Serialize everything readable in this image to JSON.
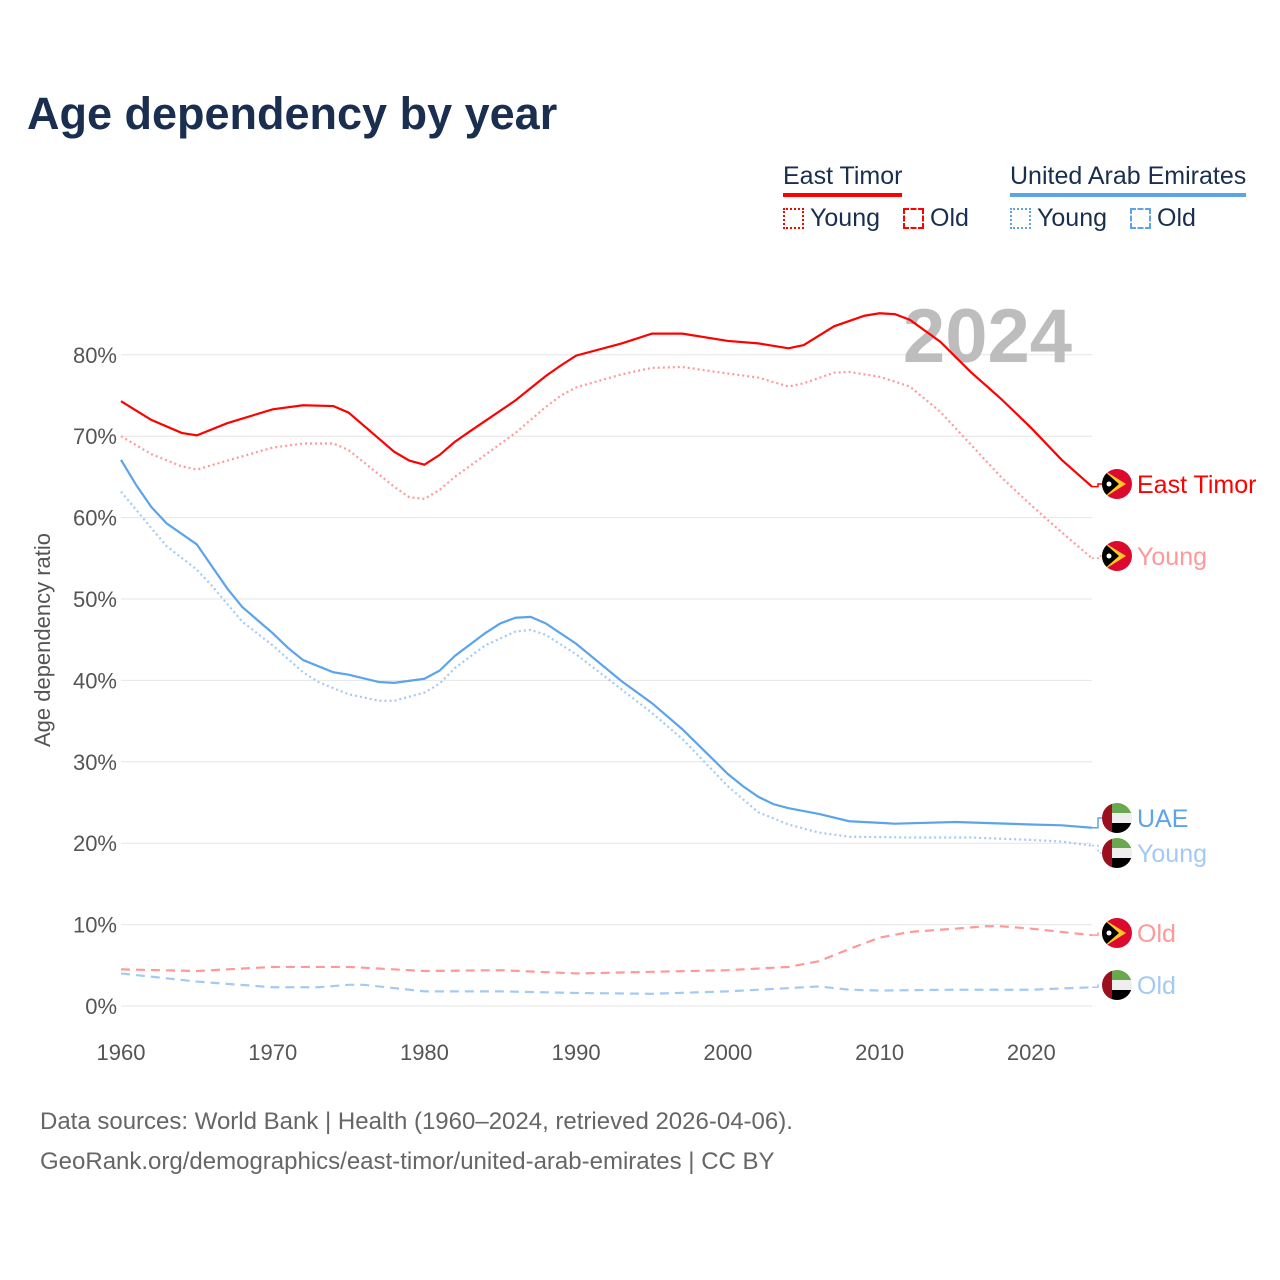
{
  "title": "Age dependency by year",
  "legend": {
    "groups": [
      {
        "name": "East Timor",
        "color": "#ff0000",
        "items": [
          "Young",
          "Old"
        ]
      },
      {
        "name": "United Arab Emirates",
        "color": "#5ba4ec",
        "items": [
          "Young",
          "Old"
        ]
      }
    ]
  },
  "year_watermark": "2024",
  "footer": {
    "line1": "Data sources: World Bank | Health (1960–2024, retrieved 2026-04-06).",
    "line2": "GeoRank.org/demographics/east-timor/united-arab-emirates | CC BY"
  },
  "chart_data": {
    "type": "line",
    "title": "Age dependency by year",
    "xlabel": "",
    "ylabel": "Age dependency ratio",
    "xlim": [
      1960,
      2024
    ],
    "ylim": [
      0,
      85
    ],
    "x_ticks": [
      "1960",
      "1970",
      "1980",
      "1990",
      "2000",
      "2010",
      "2020"
    ],
    "y_ticks": [
      "0%",
      "10%",
      "20%",
      "30%",
      "40%",
      "50%",
      "60%",
      "70%",
      "80%"
    ],
    "grid": true,
    "series": [
      {
        "name": "East Timor",
        "end_label": "East Timor",
        "color": "#ff0000",
        "style": "solid",
        "flag": "east-timor",
        "x": [
          1960,
          1962,
          1964,
          1965,
          1967,
          1970,
          1972,
          1974,
          1975,
          1978,
          1979,
          1980,
          1981,
          1982,
          1983,
          1986,
          1988,
          1989,
          1990,
          1993,
          1995,
          1997,
          2000,
          2002,
          2004,
          2005,
          2007,
          2009,
          2010,
          2011,
          2012,
          2014,
          2016,
          2018,
          2020,
          2022,
          2024
        ],
        "y": [
          74.3,
          72,
          70.4,
          70.1,
          71.6,
          73.3,
          73.8,
          73.7,
          72.9,
          68.1,
          67,
          66.5,
          67.7,
          69.3,
          70.6,
          74.4,
          77.4,
          78.7,
          79.9,
          81.4,
          82.6,
          82.6,
          81.7,
          81.4,
          80.8,
          81.2,
          83.5,
          84.8,
          85.1,
          85,
          84.3,
          81.6,
          77.9,
          74.6,
          71,
          67.1,
          63.8
        ]
      },
      {
        "name": "East Timor Young",
        "end_label": "Young",
        "color": "#ff9999",
        "style": "dotted",
        "flag": "east-timor",
        "x": [
          1960,
          1962,
          1964,
          1965,
          1967,
          1970,
          1972,
          1974,
          1975,
          1978,
          1979,
          1980,
          1981,
          1982,
          1986,
          1988,
          1989,
          1990,
          1993,
          1995,
          1997,
          2000,
          2002,
          2004,
          2005,
          2007,
          2008,
          2010,
          2012,
          2014,
          2016,
          2018,
          2020,
          2022,
          2024
        ],
        "y": [
          70,
          67.8,
          66.3,
          65.9,
          67,
          68.6,
          69.1,
          69.1,
          68.3,
          63.8,
          62.5,
          62.3,
          63.4,
          65,
          70.4,
          73.6,
          75,
          76,
          77.6,
          78.4,
          78.5,
          77.7,
          77.2,
          76.1,
          76.5,
          77.8,
          77.9,
          77.3,
          76.1,
          73,
          69,
          65,
          61.5,
          58.2,
          55
        ]
      },
      {
        "name": "East Timor Old",
        "end_label": "Old",
        "color": "#ff9999",
        "style": "dashed",
        "flag": "east-timor",
        "x": [
          1960,
          1965,
          1970,
          1975,
          1980,
          1985,
          1990,
          1995,
          2000,
          2004,
          2006,
          2008,
          2010,
          2012,
          2015,
          2017,
          2018,
          2020,
          2024
        ],
        "y": [
          4.5,
          4.3,
          4.8,
          4.8,
          4.3,
          4.4,
          4.0,
          4.2,
          4.4,
          4.8,
          5.5,
          7.0,
          8.4,
          9.1,
          9.5,
          9.8,
          9.8,
          9.5,
          8.7
        ]
      },
      {
        "name": "UAE",
        "end_label": "UAE",
        "color": "#5ba4ec",
        "style": "solid",
        "flag": "uae",
        "x": [
          1960,
          1961,
          1962,
          1963,
          1965,
          1966,
          1967,
          1968,
          1970,
          1971,
          1972,
          1974,
          1975,
          1977,
          1978,
          1980,
          1981,
          1982,
          1984,
          1985,
          1986,
          1987,
          1988,
          1990,
          1993,
          1995,
          1997,
          2000,
          2001,
          2002,
          2003,
          2004,
          2006,
          2008,
          2011,
          2015,
          2020,
          2022,
          2024
        ],
        "y": [
          67.1,
          64,
          61.3,
          59.3,
          56.7,
          54,
          51.3,
          49,
          45.8,
          44,
          42.5,
          41,
          40.7,
          39.8,
          39.7,
          40.2,
          41.2,
          43,
          45.8,
          47,
          47.7,
          47.8,
          47,
          44.5,
          39.9,
          37.2,
          34,
          28.5,
          27,
          25.7,
          24.8,
          24.3,
          23.6,
          22.7,
          22.4,
          22.6,
          22.3,
          22.2,
          21.9
        ]
      },
      {
        "name": "UAE Young",
        "end_label": "Young",
        "color": "#a3caf3",
        "style": "dotted",
        "flag": "uae",
        "x": [
          1960,
          1962,
          1963,
          1965,
          1966,
          1968,
          1970,
          1972,
          1973,
          1975,
          1977,
          1978,
          1980,
          1981,
          1982,
          1984,
          1986,
          1987,
          1988,
          1990,
          1995,
          1997,
          2000,
          2002,
          2004,
          2006,
          2008,
          2012,
          2016,
          2020,
          2022,
          2024
        ],
        "y": [
          63.2,
          58.7,
          56.5,
          53.6,
          51.6,
          47.2,
          44.3,
          41,
          39.8,
          38.3,
          37.5,
          37.5,
          38.5,
          39.6,
          41.5,
          44.3,
          46,
          46.2,
          45.6,
          43.2,
          36,
          32.8,
          27,
          23.8,
          22.3,
          21.3,
          20.8,
          20.7,
          20.7,
          20.4,
          20.2,
          19.7
        ]
      },
      {
        "name": "UAE Old",
        "end_label": "Old",
        "color": "#a3caf3",
        "style": "dashed",
        "flag": "uae",
        "x": [
          1960,
          1965,
          1970,
          1973,
          1975,
          1976,
          1980,
          1985,
          1990,
          1995,
          2000,
          2004,
          2006,
          2008,
          2010,
          2015,
          2020,
          2024
        ],
        "y": [
          4.0,
          3.0,
          2.3,
          2.3,
          2.6,
          2.6,
          1.8,
          1.8,
          1.6,
          1.5,
          1.8,
          2.2,
          2.4,
          2.0,
          1.9,
          2.0,
          2.0,
          2.3
        ]
      }
    ]
  }
}
